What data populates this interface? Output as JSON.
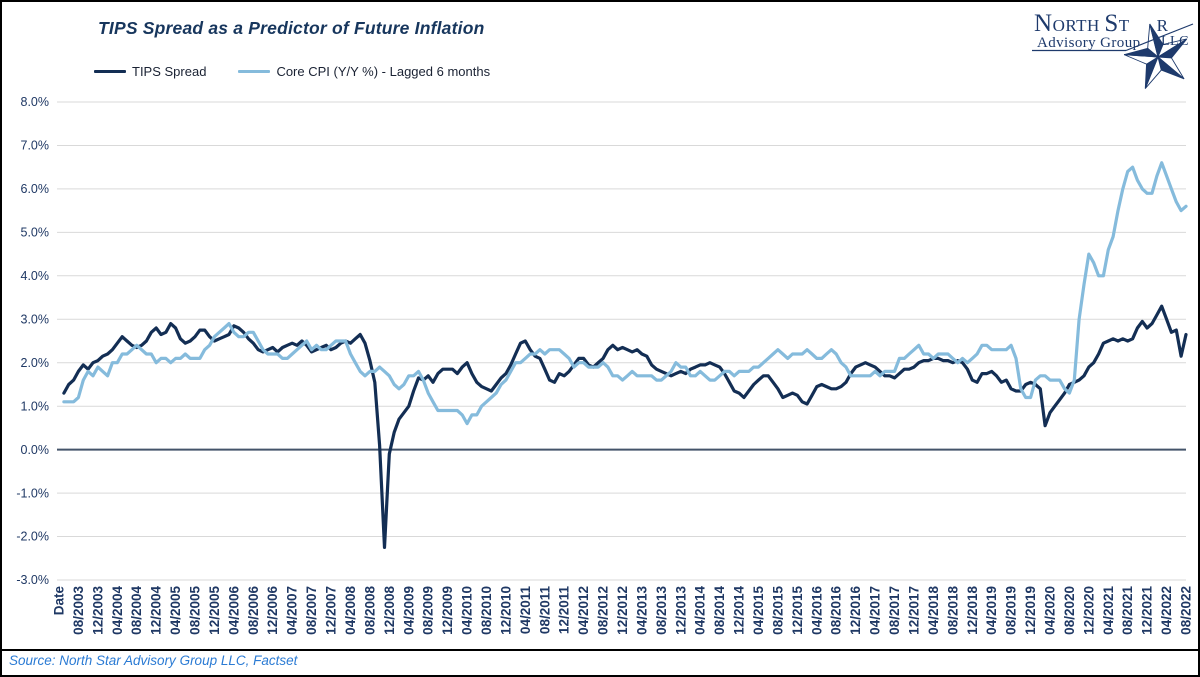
{
  "logo": {
    "n1": "N",
    "n2": "ORTH",
    "n3": "S",
    "n4": "T",
    "n5": "R",
    "line2": "Advisory Group",
    "line3": "LLC",
    "navy": "#1e3a6c"
  },
  "footer": {
    "source": "Source: North Star Advisory Group LLC, Factset"
  },
  "chart_data": {
    "type": "line",
    "title": "TIPS Spread as a Predictor of Future Inflation",
    "x_axis_label": "Date",
    "x_start": "05/2003",
    "x_end": "08/2022",
    "x_interval": "monthly",
    "x_tick_labels": [
      "Date",
      "08/2003",
      "12/2003",
      "04/2004",
      "08/2004",
      "12/2004",
      "04/2005",
      "08/2005",
      "12/2005",
      "04/2006",
      "08/2006",
      "12/2006",
      "04/2007",
      "08/2007",
      "12/2007",
      "04/2008",
      "08/2008",
      "12/2008",
      "04/2009",
      "08/2009",
      "12/2009",
      "04/2010",
      "08/2010",
      "12/2010",
      "04/2011",
      "08/2011",
      "12/2011",
      "04/2012",
      "08/2012",
      "12/2012",
      "04/2013",
      "08/2013",
      "12/2013",
      "04/2014",
      "08/2014",
      "12/2014",
      "04/2015",
      "08/2015",
      "12/2015",
      "04/2016",
      "08/2016",
      "12/2016",
      "04/2017",
      "08/2017",
      "12/2017",
      "04/2018",
      "08/2018",
      "12/2018",
      "04/2019",
      "08/2019",
      "12/2019",
      "04/2020",
      "08/2020",
      "12/2020",
      "04/2021",
      "08/2021",
      "12/2021",
      "04/2022",
      "08/2022"
    ],
    "x_label_every_n_points": 4,
    "y_axis": {
      "tick_labels": [
        "8.0%",
        "7.0%",
        "6.0%",
        "5.0%",
        "4.0%",
        "3.0%",
        "2.0%",
        "1.0%",
        "0.0%",
        "-1.0%",
        "-2.0%",
        "-3.0%"
      ],
      "values": [
        8,
        7,
        6,
        5,
        4,
        3,
        2,
        1,
        0,
        -1,
        -2,
        -3
      ],
      "range": [
        -3,
        8
      ]
    },
    "grid": "horizontal",
    "gridline_color": "#d9d9d9",
    "zero_line_color": "#44546a",
    "legend_position": "top-left",
    "series": [
      {
        "name": "TIPS Spread",
        "color": "#132e54",
        "values": [
          1.3,
          1.5,
          1.6,
          1.8,
          1.95,
          1.85,
          2.0,
          2.05,
          2.15,
          2.2,
          2.3,
          2.45,
          2.6,
          2.5,
          2.4,
          2.35,
          2.4,
          2.5,
          2.7,
          2.8,
          2.65,
          2.7,
          2.9,
          2.8,
          2.55,
          2.45,
          2.5,
          2.6,
          2.75,
          2.75,
          2.6,
          2.5,
          2.55,
          2.6,
          2.65,
          2.85,
          2.8,
          2.7,
          2.55,
          2.45,
          2.3,
          2.25,
          2.3,
          2.35,
          2.25,
          2.35,
          2.4,
          2.45,
          2.4,
          2.5,
          2.4,
          2.25,
          2.3,
          2.35,
          2.4,
          2.3,
          2.35,
          2.45,
          2.5,
          2.45,
          2.55,
          2.65,
          2.45,
          2.05,
          1.55,
          0.1,
          -2.25,
          -0.1,
          0.4,
          0.7,
          0.85,
          1.0,
          1.35,
          1.65,
          1.6,
          1.7,
          1.55,
          1.75,
          1.85,
          1.85,
          1.85,
          1.75,
          1.9,
          2.0,
          1.75,
          1.55,
          1.45,
          1.4,
          1.35,
          1.5,
          1.65,
          1.75,
          1.95,
          2.2,
          2.45,
          2.5,
          2.3,
          2.15,
          2.1,
          1.85,
          1.6,
          1.55,
          1.75,
          1.7,
          1.8,
          1.95,
          2.1,
          2.1,
          1.95,
          1.9,
          2.0,
          2.1,
          2.3,
          2.4,
          2.3,
          2.35,
          2.3,
          2.25,
          2.3,
          2.2,
          2.15,
          1.95,
          1.85,
          1.8,
          1.75,
          1.7,
          1.75,
          1.8,
          1.75,
          1.85,
          1.9,
          1.95,
          1.95,
          2.0,
          1.95,
          1.9,
          1.75,
          1.55,
          1.35,
          1.3,
          1.2,
          1.35,
          1.5,
          1.6,
          1.7,
          1.7,
          1.55,
          1.4,
          1.2,
          1.25,
          1.3,
          1.25,
          1.1,
          1.05,
          1.25,
          1.45,
          1.5,
          1.45,
          1.4,
          1.4,
          1.45,
          1.55,
          1.75,
          1.9,
          1.95,
          2.0,
          1.95,
          1.9,
          1.8,
          1.7,
          1.7,
          1.65,
          1.75,
          1.85,
          1.85,
          1.9,
          2.0,
          2.05,
          2.05,
          2.1,
          2.1,
          2.05,
          2.05,
          2.0,
          2.05,
          2.0,
          1.85,
          1.6,
          1.55,
          1.75,
          1.75,
          1.8,
          1.7,
          1.55,
          1.6,
          1.4,
          1.35,
          1.35,
          1.5,
          1.55,
          1.5,
          1.4,
          0.55,
          0.85,
          1.0,
          1.15,
          1.3,
          1.5,
          1.55,
          1.6,
          1.7,
          1.9,
          2.0,
          2.2,
          2.45,
          2.5,
          2.55,
          2.5,
          2.55,
          2.5,
          2.55,
          2.8,
          2.95,
          2.8,
          2.9,
          3.1,
          3.3,
          3.0,
          2.7,
          2.75,
          2.15,
          2.65
        ]
      },
      {
        "name": "Core CPI (Y/Y %) - Lagged 6 months",
        "color": "#85bbdc",
        "values": [
          1.1,
          1.1,
          1.1,
          1.2,
          1.6,
          1.8,
          1.7,
          1.9,
          1.8,
          1.7,
          2.0,
          2.0,
          2.2,
          2.2,
          2.3,
          2.4,
          2.3,
          2.2,
          2.2,
          2.0,
          2.1,
          2.1,
          2.0,
          2.1,
          2.1,
          2.2,
          2.1,
          2.1,
          2.1,
          2.3,
          2.4,
          2.6,
          2.7,
          2.8,
          2.9,
          2.7,
          2.6,
          2.6,
          2.7,
          2.7,
          2.5,
          2.3,
          2.2,
          2.2,
          2.2,
          2.1,
          2.1,
          2.2,
          2.3,
          2.4,
          2.5,
          2.3,
          2.4,
          2.3,
          2.3,
          2.4,
          2.5,
          2.5,
          2.5,
          2.2,
          2.0,
          1.8,
          1.7,
          1.8,
          1.8,
          1.9,
          1.8,
          1.7,
          1.5,
          1.4,
          1.5,
          1.7,
          1.7,
          1.8,
          1.6,
          1.3,
          1.1,
          0.9,
          0.9,
          0.9,
          0.9,
          0.9,
          0.8,
          0.6,
          0.8,
          0.8,
          1.0,
          1.1,
          1.2,
          1.3,
          1.5,
          1.6,
          1.8,
          2.0,
          2.0,
          2.1,
          2.2,
          2.2,
          2.3,
          2.2,
          2.3,
          2.3,
          2.3,
          2.2,
          2.1,
          1.9,
          2.0,
          2.0,
          1.9,
          1.9,
          1.9,
          2.0,
          1.9,
          1.7,
          1.7,
          1.6,
          1.7,
          1.8,
          1.7,
          1.7,
          1.7,
          1.7,
          1.6,
          1.6,
          1.7,
          1.8,
          2.0,
          1.9,
          1.9,
          1.7,
          1.7,
          1.8,
          1.7,
          1.6,
          1.6,
          1.7,
          1.8,
          1.8,
          1.7,
          1.8,
          1.8,
          1.8,
          1.9,
          1.9,
          2.0,
          2.1,
          2.2,
          2.3,
          2.2,
          2.1,
          2.2,
          2.2,
          2.2,
          2.3,
          2.2,
          2.1,
          2.1,
          2.2,
          2.3,
          2.2,
          2.0,
          1.9,
          1.7,
          1.7,
          1.7,
          1.7,
          1.7,
          1.8,
          1.7,
          1.8,
          1.8,
          1.8,
          2.1,
          2.1,
          2.2,
          2.3,
          2.4,
          2.2,
          2.2,
          2.1,
          2.2,
          2.2,
          2.2,
          2.1,
          2.0,
          2.1,
          2.0,
          2.1,
          2.2,
          2.4,
          2.4,
          2.3,
          2.3,
          2.3,
          2.3,
          2.4,
          2.1,
          1.4,
          1.2,
          1.2,
          1.6,
          1.7,
          1.7,
          1.6,
          1.6,
          1.6,
          1.4,
          1.3,
          1.6,
          3.0,
          3.8,
          4.5,
          4.3,
          4.0,
          4.0,
          4.6,
          4.9,
          5.5,
          6.0,
          6.4,
          6.5,
          6.2,
          6.0,
          5.9,
          5.9,
          6.3,
          6.6,
          6.3,
          6.0,
          5.7,
          5.5,
          5.6
        ]
      }
    ]
  }
}
